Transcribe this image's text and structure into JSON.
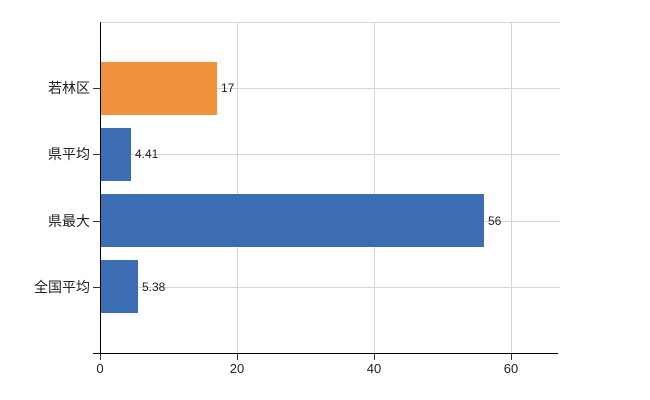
{
  "chart_data": {
    "type": "bar",
    "orientation": "horizontal",
    "title": "",
    "categories": [
      "若林区",
      "県平均",
      "県最大",
      "全国平均"
    ],
    "values": [
      17,
      4.41,
      56,
      5.38
    ],
    "value_labels": [
      "17",
      "4.41",
      "56",
      "5.38"
    ],
    "x_ticks": [
      "0",
      "20",
      "40",
      "60"
    ],
    "x_tick_values": [
      0,
      20,
      40,
      60
    ],
    "xlim": [
      0,
      67.2
    ],
    "grid": "horizontal-and-vertical",
    "legend": "none",
    "highlighted_category": "若林区",
    "colors": {
      "highlight_bar": "#f0923c",
      "default_bar": "#3c6db3",
      "gridline": "#d6d6d6",
      "axis": "#000000",
      "text": "#222222"
    },
    "bar_color_roles": [
      "highlight_bar",
      "default_bar",
      "default_bar",
      "default_bar"
    ]
  }
}
